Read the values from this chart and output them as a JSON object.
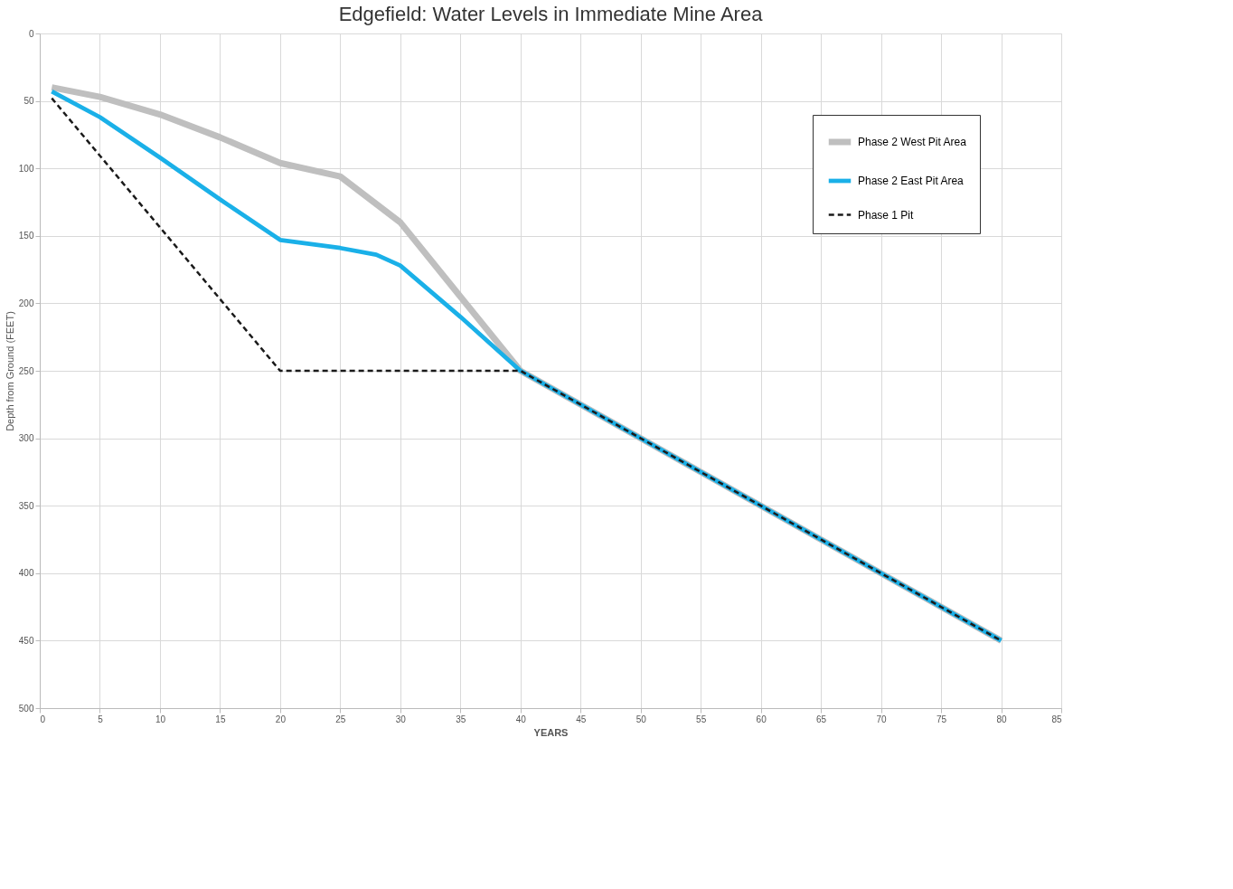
{
  "chart_data": {
    "type": "line",
    "title": "Edgefield: Water Levels in Immediate Mine Area",
    "xlabel": "YEARS",
    "ylabel": "Depth from Ground (FEET)",
    "xlim": [
      0,
      85
    ],
    "xticks": [
      0,
      5,
      10,
      15,
      20,
      25,
      30,
      35,
      40,
      45,
      50,
      55,
      60,
      65,
      70,
      75,
      80,
      85
    ],
    "ylim": [
      500,
      0
    ],
    "yticks": [
      0,
      50,
      100,
      150,
      200,
      250,
      300,
      350,
      400,
      450,
      500
    ],
    "grid": true,
    "legend": "top right",
    "marker": "none",
    "series": [
      {
        "name": "Phase 2 West Pit Area",
        "color": "#bfbfbf",
        "line_style": "solid",
        "x": [
          1,
          5,
          10,
          15,
          20,
          25,
          30,
          35,
          40,
          80
        ],
        "values": [
          40,
          47,
          60,
          77,
          96,
          106,
          140,
          195,
          250,
          450
        ]
      },
      {
        "name": "Phase 2 East Pit Area",
        "color": "#1ab0e8",
        "line_style": "solid",
        "x": [
          1,
          5,
          10,
          15,
          20,
          25,
          28,
          30,
          35,
          40,
          80
        ],
        "values": [
          43,
          62,
          92,
          123,
          153,
          159,
          164,
          172,
          210,
          250,
          450
        ]
      },
      {
        "name": "Phase 1 Pit",
        "color": "#1a1a1a",
        "line_style": "dashed",
        "x": [
          1,
          20,
          40,
          80
        ],
        "values": [
          48,
          250,
          250,
          450
        ]
      }
    ]
  }
}
